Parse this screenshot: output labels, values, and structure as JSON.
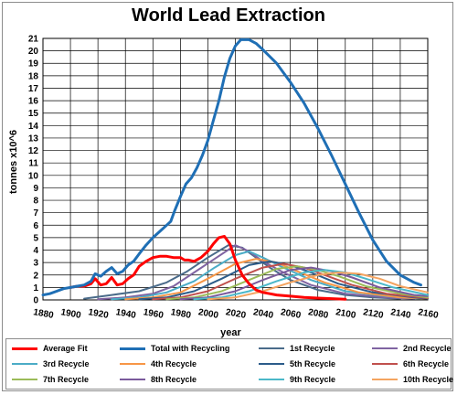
{
  "chart_data": {
    "type": "line",
    "title": "World Lead Extraction",
    "xlabel": "year",
    "ylabel": "tonnes x10^6",
    "xlim": [
      1880,
      2160
    ],
    "ylim": [
      0,
      21
    ],
    "x_ticks": [
      1880,
      1900,
      1920,
      1940,
      1960,
      1980,
      2000,
      2020,
      2040,
      2060,
      2080,
      2100,
      2120,
      2140,
      2160
    ],
    "y_ticks": [
      0,
      1,
      2,
      3,
      4,
      5,
      6,
      7,
      8,
      9,
      10,
      11,
      12,
      13,
      14,
      15,
      16,
      17,
      18,
      19,
      20,
      21
    ],
    "grid": true,
    "legend_position": "bottom",
    "series": [
      {
        "name": "Average Fit",
        "color": "#ff0000",
        "width": 3,
        "points": [
          [
            1900,
            1.0
          ],
          [
            1905,
            1.1
          ],
          [
            1910,
            1.1
          ],
          [
            1915,
            1.3
          ],
          [
            1918,
            1.7
          ],
          [
            1922,
            1.2
          ],
          [
            1926,
            1.3
          ],
          [
            1930,
            1.8
          ],
          [
            1934,
            1.2
          ],
          [
            1938,
            1.3
          ],
          [
            1942,
            1.7
          ],
          [
            1946,
            2.0
          ],
          [
            1950,
            2.7
          ],
          [
            1955,
            3.1
          ],
          [
            1960,
            3.4
          ],
          [
            1965,
            3.5
          ],
          [
            1970,
            3.5
          ],
          [
            1975,
            3.4
          ],
          [
            1980,
            3.4
          ],
          [
            1983,
            3.2
          ],
          [
            1986,
            3.2
          ],
          [
            1990,
            3.1
          ],
          [
            1995,
            3.4
          ],
          [
            2000,
            3.9
          ],
          [
            2004,
            4.5
          ],
          [
            2008,
            5.0
          ],
          [
            2012,
            5.1
          ],
          [
            2016,
            4.5
          ],
          [
            2020,
            3.2
          ],
          [
            2025,
            2.0
          ],
          [
            2030,
            1.3
          ],
          [
            2035,
            0.8
          ],
          [
            2040,
            0.6
          ],
          [
            2045,
            0.5
          ],
          [
            2050,
            0.4
          ],
          [
            2060,
            0.3
          ],
          [
            2070,
            0.2
          ],
          [
            2080,
            0.15
          ],
          [
            2090,
            0.1
          ],
          [
            2100,
            0.05
          ]
        ]
      },
      {
        "name": "Total with Recycling",
        "color": "#1f6fb5",
        "width": 3,
        "points": [
          [
            1880,
            0.4
          ],
          [
            1885,
            0.5
          ],
          [
            1890,
            0.7
          ],
          [
            1895,
            0.9
          ],
          [
            1900,
            1.0
          ],
          [
            1905,
            1.1
          ],
          [
            1910,
            1.2
          ],
          [
            1915,
            1.5
          ],
          [
            1918,
            2.1
          ],
          [
            1922,
            1.9
          ],
          [
            1926,
            2.3
          ],
          [
            1930,
            2.6
          ],
          [
            1934,
            2.1
          ],
          [
            1938,
            2.3
          ],
          [
            1942,
            2.8
          ],
          [
            1946,
            3.1
          ],
          [
            1950,
            3.7
          ],
          [
            1955,
            4.4
          ],
          [
            1960,
            5.0
          ],
          [
            1965,
            5.5
          ],
          [
            1970,
            6.0
          ],
          [
            1973,
            6.3
          ],
          [
            1976,
            7.2
          ],
          [
            1980,
            8.3
          ],
          [
            1984,
            9.3
          ],
          [
            1988,
            9.8
          ],
          [
            1992,
            10.6
          ],
          [
            1996,
            11.6
          ],
          [
            2000,
            12.8
          ],
          [
            2004,
            14.4
          ],
          [
            2008,
            16.0
          ],
          [
            2012,
            17.9
          ],
          [
            2016,
            19.4
          ],
          [
            2020,
            20.4
          ],
          [
            2024,
            20.9
          ],
          [
            2030,
            20.9
          ],
          [
            2035,
            20.6
          ],
          [
            2040,
            20.1
          ],
          [
            2050,
            19.0
          ],
          [
            2060,
            17.5
          ],
          [
            2070,
            15.8
          ],
          [
            2080,
            13.8
          ],
          [
            2090,
            11.6
          ],
          [
            2100,
            9.3
          ],
          [
            2110,
            7.0
          ],
          [
            2120,
            4.8
          ],
          [
            2130,
            3.1
          ],
          [
            2140,
            2.0
          ],
          [
            2150,
            1.4
          ],
          [
            2155,
            1.2
          ]
        ]
      },
      {
        "name": "1st Recycle",
        "color": "#4a6b8a",
        "width": 2,
        "points": [
          [
            1910,
            0.1
          ],
          [
            1930,
            0.4
          ],
          [
            1950,
            0.7
          ],
          [
            1970,
            1.4
          ],
          [
            1985,
            2.3
          ],
          [
            2000,
            3.4
          ],
          [
            2015,
            4.4
          ],
          [
            2025,
            4.2
          ],
          [
            2035,
            3.4
          ],
          [
            2045,
            2.6
          ],
          [
            2060,
            1.6
          ],
          [
            2080,
            0.8
          ],
          [
            2100,
            0.4
          ],
          [
            2120,
            0.2
          ],
          [
            2140,
            0.1
          ]
        ]
      },
      {
        "name": "2nd Recycle",
        "color": "#8064a2",
        "width": 2,
        "points": [
          [
            1920,
            0.05
          ],
          [
            1940,
            0.2
          ],
          [
            1960,
            0.5
          ],
          [
            1975,
            1.1
          ],
          [
            1990,
            2.2
          ],
          [
            2005,
            3.3
          ],
          [
            2020,
            4.4
          ],
          [
            2030,
            3.9
          ],
          [
            2040,
            3.1
          ],
          [
            2055,
            2.2
          ],
          [
            2075,
            1.2
          ],
          [
            2100,
            0.5
          ],
          [
            2130,
            0.2
          ],
          [
            2150,
            0.1
          ]
        ]
      },
      {
        "name": "3rd Recycle",
        "color": "#4bacc6",
        "width": 2,
        "points": [
          [
            1930,
            0.05
          ],
          [
            1950,
            0.2
          ],
          [
            1970,
            0.6
          ],
          [
            1990,
            1.5
          ],
          [
            2005,
            2.6
          ],
          [
            2020,
            3.6
          ],
          [
            2030,
            3.9
          ],
          [
            2040,
            3.4
          ],
          [
            2055,
            2.6
          ],
          [
            2075,
            1.6
          ],
          [
            2100,
            0.7
          ],
          [
            2130,
            0.3
          ],
          [
            2155,
            0.1
          ]
        ]
      },
      {
        "name": "4th Recycle",
        "color": "#f79646",
        "width": 2,
        "points": [
          [
            1940,
            0.05
          ],
          [
            1960,
            0.2
          ],
          [
            1980,
            0.6
          ],
          [
            2000,
            1.7
          ],
          [
            2020,
            2.9
          ],
          [
            2035,
            3.3
          ],
          [
            2050,
            3.0
          ],
          [
            2065,
            2.3
          ],
          [
            2085,
            1.4
          ],
          [
            2110,
            0.6
          ],
          [
            2140,
            0.2
          ],
          [
            2160,
            0.1
          ]
        ]
      },
      {
        "name": "5th Recycle",
        "color": "#2c5c8a",
        "width": 2,
        "points": [
          [
            1950,
            0.05
          ],
          [
            1970,
            0.2
          ],
          [
            1990,
            0.7
          ],
          [
            2010,
            1.7
          ],
          [
            2030,
            2.8
          ],
          [
            2045,
            3.1
          ],
          [
            2060,
            2.8
          ],
          [
            2075,
            2.2
          ],
          [
            2095,
            1.3
          ],
          [
            2120,
            0.6
          ],
          [
            2150,
            0.2
          ],
          [
            2160,
            0.1
          ]
        ]
      },
      {
        "name": "6th Recycle",
        "color": "#c0504d",
        "width": 2,
        "points": [
          [
            1960,
            0.05
          ],
          [
            1980,
            0.2
          ],
          [
            2000,
            0.7
          ],
          [
            2020,
            1.7
          ],
          [
            2040,
            2.6
          ],
          [
            2055,
            2.9
          ],
          [
            2070,
            2.6
          ],
          [
            2085,
            2.0
          ],
          [
            2105,
            1.2
          ],
          [
            2130,
            0.5
          ],
          [
            2160,
            0.15
          ]
        ]
      },
      {
        "name": "7th Recycle",
        "color": "#9bbb59",
        "width": 2,
        "points": [
          [
            1970,
            0.05
          ],
          [
            1990,
            0.2
          ],
          [
            2010,
            0.7
          ],
          [
            2030,
            1.6
          ],
          [
            2050,
            2.5
          ],
          [
            2065,
            2.7
          ],
          [
            2080,
            2.4
          ],
          [
            2095,
            1.9
          ],
          [
            2115,
            1.1
          ],
          [
            2140,
            0.5
          ],
          [
            2160,
            0.2
          ]
        ]
      },
      {
        "name": "8th Recycle",
        "color": "#7a5a9c",
        "width": 2,
        "points": [
          [
            1980,
            0.05
          ],
          [
            2000,
            0.2
          ],
          [
            2020,
            0.7
          ],
          [
            2040,
            1.6
          ],
          [
            2060,
            2.4
          ],
          [
            2075,
            2.6
          ],
          [
            2090,
            2.3
          ],
          [
            2105,
            1.8
          ],
          [
            2125,
            1.0
          ],
          [
            2150,
            0.4
          ],
          [
            2160,
            0.3
          ]
        ]
      },
      {
        "name": "9th Recycle",
        "color": "#4bb8c9",
        "width": 2,
        "points": [
          [
            1990,
            0.05
          ],
          [
            2010,
            0.2
          ],
          [
            2030,
            0.7
          ],
          [
            2050,
            1.5
          ],
          [
            2070,
            2.2
          ],
          [
            2085,
            2.4
          ],
          [
            2100,
            2.2
          ],
          [
            2115,
            1.7
          ],
          [
            2135,
            1.0
          ],
          [
            2160,
            0.4
          ]
        ]
      },
      {
        "name": "10th Recycle",
        "color": "#f4a460",
        "width": 2,
        "points": [
          [
            2000,
            0.05
          ],
          [
            2020,
            0.2
          ],
          [
            2040,
            0.7
          ],
          [
            2060,
            1.4
          ],
          [
            2080,
            2.0
          ],
          [
            2095,
            2.2
          ],
          [
            2110,
            2.1
          ],
          [
            2125,
            1.7
          ],
          [
            2140,
            1.1
          ],
          [
            2160,
            0.6
          ]
        ]
      }
    ]
  }
}
